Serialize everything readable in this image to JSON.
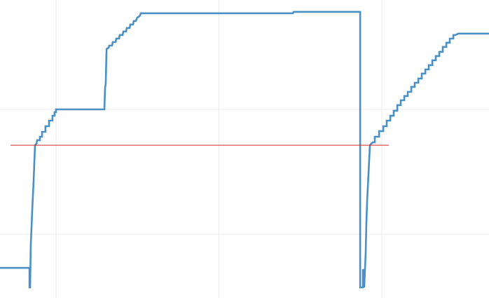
{
  "chart_data": {
    "type": "line",
    "title": "",
    "xlabel": "",
    "ylabel": "",
    "xlim": [
      0.656,
      3.658
    ],
    "ylim": [
      0.489,
      2.876
    ],
    "grid": true,
    "x_gridlines": [
      1,
      2,
      3
    ],
    "y_gridlines": [
      1,
      2
    ],
    "series": [
      {
        "color": "#4a90c4",
        "step": true,
        "points": [
          [
            0.656,
            0.73
          ],
          [
            0.837,
            0.73
          ],
          [
            0.837,
            0.573
          ],
          [
            0.841,
            0.573
          ],
          [
            0.845,
            0.91
          ],
          [
            0.854,
            1.191
          ],
          [
            0.862,
            1.416
          ],
          [
            0.871,
            1.713
          ],
          [
            0.88,
            1.725
          ],
          [
            0.884,
            1.753
          ],
          [
            0.901,
            1.753
          ],
          [
            0.901,
            1.781
          ],
          [
            0.914,
            1.781
          ],
          [
            0.914,
            1.82
          ],
          [
            0.935,
            1.82
          ],
          [
            0.935,
            1.865
          ],
          [
            0.957,
            1.865
          ],
          [
            0.957,
            1.91
          ],
          [
            0.978,
            1.91
          ],
          [
            0.978,
            1.949
          ],
          [
            0.991,
            1.949
          ],
          [
            0.991,
            1.978
          ],
          [
            1.0,
            1.978
          ],
          [
            1.0,
            2.0
          ],
          [
            1.297,
            2.0
          ],
          [
            1.301,
            2.174
          ],
          [
            1.305,
            2.202
          ],
          [
            1.31,
            2.483
          ],
          [
            1.323,
            2.494
          ],
          [
            1.327,
            2.511
          ],
          [
            1.344,
            2.511
          ],
          [
            1.348,
            2.539
          ],
          [
            1.366,
            2.539
          ],
          [
            1.37,
            2.567
          ],
          [
            1.387,
            2.567
          ],
          [
            1.391,
            2.596
          ],
          [
            1.409,
            2.596
          ],
          [
            1.413,
            2.624
          ],
          [
            1.43,
            2.624
          ],
          [
            1.434,
            2.652
          ],
          [
            1.452,
            2.652
          ],
          [
            1.456,
            2.68
          ],
          [
            1.473,
            2.68
          ],
          [
            1.477,
            2.708
          ],
          [
            1.49,
            2.708
          ],
          [
            1.499,
            2.736
          ],
          [
            1.508,
            2.742
          ],
          [
            1.516,
            2.753
          ],
          [
            1.52,
            2.77
          ],
          [
            2.454,
            2.77
          ],
          [
            2.458,
            2.781
          ],
          [
            2.867,
            2.781
          ],
          [
            2.867,
            0.573
          ],
          [
            2.884,
            0.573
          ],
          [
            2.884,
            0.713
          ],
          [
            2.892,
            0.713
          ],
          [
            2.892,
            0.573
          ],
          [
            2.901,
            0.854
          ],
          [
            2.905,
            1.079
          ],
          [
            2.91,
            1.275
          ],
          [
            2.918,
            1.472
          ],
          [
            2.927,
            1.713
          ],
          [
            2.935,
            1.725
          ],
          [
            2.944,
            1.736
          ],
          [
            2.957,
            1.736
          ],
          [
            2.957,
            1.781
          ],
          [
            2.983,
            1.781
          ],
          [
            2.983,
            1.826
          ],
          [
            3.009,
            1.826
          ],
          [
            3.009,
            1.865
          ],
          [
            3.03,
            1.865
          ],
          [
            3.03,
            1.91
          ],
          [
            3.052,
            1.91
          ],
          [
            3.052,
            1.949
          ],
          [
            3.073,
            1.949
          ],
          [
            3.073,
            1.989
          ],
          [
            3.095,
            1.989
          ],
          [
            3.095,
            2.034
          ],
          [
            3.116,
            2.034
          ],
          [
            3.116,
            2.073
          ],
          [
            3.138,
            2.073
          ],
          [
            3.138,
            2.107
          ],
          [
            3.159,
            2.107
          ],
          [
            3.159,
            2.14
          ],
          [
            3.181,
            2.14
          ],
          [
            3.181,
            2.18
          ],
          [
            3.202,
            2.18
          ],
          [
            3.202,
            2.213
          ],
          [
            3.224,
            2.213
          ],
          [
            3.224,
            2.247
          ],
          [
            3.245,
            2.247
          ],
          [
            3.245,
            2.287
          ],
          [
            3.267,
            2.287
          ],
          [
            3.267,
            2.32
          ],
          [
            3.288,
            2.32
          ],
          [
            3.288,
            2.354
          ],
          [
            3.31,
            2.354
          ],
          [
            3.31,
            2.393
          ],
          [
            3.331,
            2.393
          ],
          [
            3.331,
            2.427
          ],
          [
            3.353,
            2.427
          ],
          [
            3.353,
            2.461
          ],
          [
            3.374,
            2.461
          ],
          [
            3.374,
            2.5
          ],
          [
            3.396,
            2.5
          ],
          [
            3.396,
            2.534
          ],
          [
            3.417,
            2.534
          ],
          [
            3.417,
            2.567
          ],
          [
            3.439,
            2.567
          ],
          [
            3.439,
            2.596
          ],
          [
            3.452,
            2.596
          ],
          [
            3.469,
            2.607
          ],
          [
            3.658,
            2.607
          ]
        ]
      }
    ],
    "threshold": {
      "y": 1.713,
      "x_range": [
        0.72,
        3.043
      ],
      "color": "#d62728"
    },
    "legend": "none"
  }
}
